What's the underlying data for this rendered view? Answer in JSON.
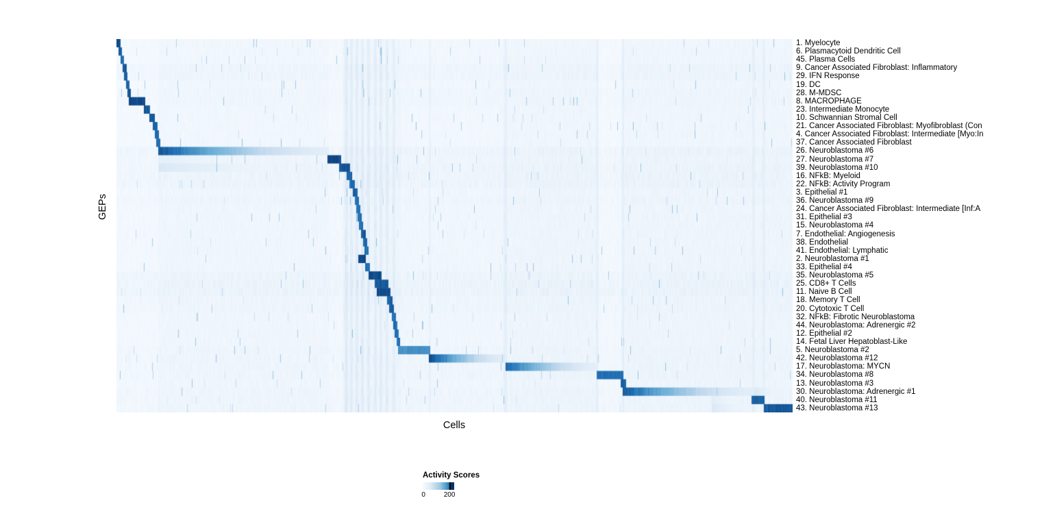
{
  "figure": {
    "background": "#ffffff"
  },
  "chart_data": {
    "type": "heatmap",
    "title": "",
    "xlabel": "Cells",
    "ylabel": "GEPs",
    "x_tick_labels": [],
    "grid": false,
    "colorbar": {
      "title": "Activity Scores",
      "min": 0,
      "max": 200,
      "min_label": "0",
      "max_label": "200",
      "palette": [
        "#f7fbff",
        "#c6dbef",
        "#6baed6",
        "#2171b5",
        "#08306b"
      ]
    },
    "rows": [
      {
        "label": "1. Myelocyte",
        "blocks": [
          [
            0.0,
            0.006,
            190
          ]
        ],
        "wash": 4
      },
      {
        "label": "6. Plasmacytoid Dendritic Cell",
        "blocks": [
          [
            0.003,
            0.008,
            170
          ]
        ],
        "wash": 4
      },
      {
        "label": "45. Plasma Cells",
        "blocks": [
          [
            0.006,
            0.011,
            160
          ]
        ],
        "wash": 4
      },
      {
        "label": "9. Cancer Associated Fibroblast: Inflammatory",
        "blocks": [
          [
            0.009,
            0.015,
            180
          ]
        ],
        "wash": 8
      },
      {
        "label": "29. IFN Response",
        "blocks": [
          [
            0.011,
            0.016,
            170
          ]
        ],
        "wash": 8
      },
      {
        "label": "19. DC",
        "blocks": [
          [
            0.014,
            0.019,
            170
          ]
        ],
        "wash": 4
      },
      {
        "label": "28. M-MDSC",
        "blocks": [
          [
            0.016,
            0.021,
            180
          ]
        ],
        "wash": 6
      },
      {
        "label": "8. MACROPHAGE",
        "blocks": [
          [
            0.018,
            0.042,
            190
          ]
        ],
        "wash": 6
      },
      {
        "label": "23. Intermediate Monocyte",
        "blocks": [
          [
            0.04,
            0.049,
            180
          ]
        ],
        "wash": 4
      },
      {
        "label": "10. Schwannian Stromal Cell",
        "blocks": [
          [
            0.048,
            0.056,
            180
          ]
        ],
        "wash": 4
      },
      {
        "label": "21. Cancer Associated Fibroblast: Myofibroblast (Con",
        "blocks": [
          [
            0.053,
            0.06,
            170
          ]
        ],
        "wash": 4
      },
      {
        "label": "4. Cancer Associated Fibroblast: Intermediate [Myo:In",
        "blocks": [
          [
            0.056,
            0.062,
            160
          ]
        ],
        "wash": 4
      },
      {
        "label": "37. Cancer Associated Fibroblast",
        "blocks": [
          [
            0.058,
            0.064,
            160
          ]
        ],
        "wash": 4
      },
      {
        "label": "26. Neuroblastoma #6",
        "blocks": [
          [
            0.061,
            0.314,
            185
          ]
        ],
        "wash": 10
      },
      {
        "label": "27. Neuroblastoma #7",
        "blocks": [
          [
            0.312,
            0.332,
            190
          ],
          [
            0.061,
            0.312,
            20
          ]
        ],
        "wash": 8
      },
      {
        "label": "39. Neuroblastoma #10",
        "blocks": [
          [
            0.329,
            0.345,
            180
          ],
          [
            0.061,
            0.312,
            32
          ]
        ],
        "wash": 10
      },
      {
        "label": "16. NFkB: Myeloid",
        "blocks": [
          [
            0.34,
            0.348,
            170
          ]
        ],
        "wash": 10
      },
      {
        "label": "22. NFkB: Activity Program",
        "blocks": [
          [
            0.344,
            0.352,
            160
          ]
        ],
        "wash": 10
      },
      {
        "label": "3. Epithelial #1",
        "blocks": [
          [
            0.349,
            0.356,
            170
          ]
        ],
        "wash": 6
      },
      {
        "label": "36. Neuroblastoma #9",
        "blocks": [
          [
            0.352,
            0.358,
            160
          ]
        ],
        "wash": 8
      },
      {
        "label": "24. Cancer Associated Fibroblast: Intermediate [Inf:A",
        "blocks": [
          [
            0.354,
            0.36,
            160
          ]
        ],
        "wash": 6
      },
      {
        "label": "31. Epithelial #3",
        "blocks": [
          [
            0.356,
            0.362,
            160
          ]
        ],
        "wash": 6
      },
      {
        "label": "15. Neuroblastoma #4",
        "blocks": [
          [
            0.358,
            0.364,
            160
          ]
        ],
        "wash": 6
      },
      {
        "label": "7. Endothelial: Angiogenesis",
        "blocks": [
          [
            0.361,
            0.368,
            180
          ]
        ],
        "wash": 6
      },
      {
        "label": "38. Endothelial",
        "blocks": [
          [
            0.364,
            0.37,
            170
          ]
        ],
        "wash": 6
      },
      {
        "label": "41. Endothelial: Lymphatic",
        "blocks": [
          [
            0.366,
            0.372,
            160
          ]
        ],
        "wash": 6
      },
      {
        "label": "2. Neuroblastoma #1",
        "blocks": [
          [
            0.357,
            0.368,
            190
          ]
        ],
        "wash": 6
      },
      {
        "label": "33. Epithelial #4",
        "blocks": [
          [
            0.367,
            0.374,
            160
          ]
        ],
        "wash": 6
      },
      {
        "label": "35. Neuroblastoma #5",
        "blocks": [
          [
            0.372,
            0.392,
            190
          ]
        ],
        "wash": 10
      },
      {
        "label": "25. CD8+ T Cells",
        "blocks": [
          [
            0.381,
            0.402,
            180
          ]
        ],
        "wash": 12
      },
      {
        "label": "11. Naive B Cell",
        "blocks": [
          [
            0.384,
            0.405,
            190
          ]
        ],
        "wash": 12
      },
      {
        "label": "18. Memory T Cell",
        "blocks": [
          [
            0.4,
            0.408,
            170
          ]
        ],
        "wash": 8
      },
      {
        "label": "20. Cytotoxic T Cell",
        "blocks": [
          [
            0.403,
            0.41,
            170
          ]
        ],
        "wash": 8
      },
      {
        "label": "32. NFkB: Fibrotic Neuroblastoma",
        "blocks": [
          [
            0.407,
            0.413,
            160
          ]
        ],
        "wash": 6
      },
      {
        "label": "44. Neuroblastoma: Adrenergic #2",
        "blocks": [
          [
            0.409,
            0.415,
            160
          ]
        ],
        "wash": 6
      },
      {
        "label": "12. Epithelial #2",
        "blocks": [
          [
            0.411,
            0.417,
            160
          ]
        ],
        "wash": 6
      },
      {
        "label": "14. Fetal Liver Hepatoblast-Like",
        "blocks": [
          [
            0.414,
            0.419,
            160
          ]
        ],
        "wash": 6
      },
      {
        "label": "5. Neuroblastoma #2",
        "blocks": [
          [
            0.416,
            0.464,
            130
          ]
        ],
        "wash": 8
      },
      {
        "label": "42. Neuroblastoma #12",
        "blocks": [
          [
            0.461,
            0.575,
            195
          ]
        ],
        "wash": 8
      },
      {
        "label": "17. Neuroblastoma: MYCN",
        "blocks": [
          [
            0.575,
            0.712,
            170
          ]
        ],
        "wash": 8
      },
      {
        "label": "34. Neuroblastoma #8",
        "blocks": [
          [
            0.71,
            0.749,
            160
          ]
        ],
        "wash": 8
      },
      {
        "label": "13. Neuroblastoma #3",
        "blocks": [
          [
            0.745,
            0.753,
            170
          ]
        ],
        "wash": 6
      },
      {
        "label": "30. Neuroblastoma: Adrenergic #1",
        "blocks": [
          [
            0.748,
            0.943,
            180
          ],
          [
            0.943,
            1.0,
            30
          ]
        ],
        "wash": 8
      },
      {
        "label": "40. Neuroblastoma #11",
        "blocks": [
          [
            0.939,
            0.958,
            170
          ],
          [
            0.88,
            0.939,
            24
          ]
        ],
        "wash": 8
      },
      {
        "label": "43. Neuroblastoma #13",
        "blocks": [
          [
            0.957,
            1.0,
            180
          ],
          [
            0.88,
            0.957,
            30
          ]
        ],
        "wash": 8
      }
    ],
    "column_washes": [
      [
        0.061,
        0.314,
        4
      ],
      [
        0.334,
        0.42,
        7
      ],
      [
        0.42,
        0.575,
        3
      ],
      [
        0.575,
        0.712,
        6
      ],
      [
        0.748,
        1.0,
        6
      ]
    ],
    "column_streaks": [
      [
        0.339,
        0.0025,
        16
      ],
      [
        0.347,
        0.002,
        14
      ],
      [
        0.355,
        0.002,
        14
      ],
      [
        0.363,
        0.002,
        16
      ],
      [
        0.372,
        0.002,
        16
      ],
      [
        0.382,
        0.002,
        14
      ],
      [
        0.391,
        0.002,
        14
      ],
      [
        0.4,
        0.002,
        14
      ],
      [
        0.41,
        0.002,
        12
      ],
      [
        0.463,
        0.002,
        10
      ],
      [
        0.574,
        0.0025,
        12
      ],
      [
        0.711,
        0.002,
        10
      ],
      [
        0.748,
        0.002,
        12
      ],
      [
        0.942,
        0.002,
        10
      ],
      [
        0.957,
        0.002,
        10
      ]
    ]
  }
}
